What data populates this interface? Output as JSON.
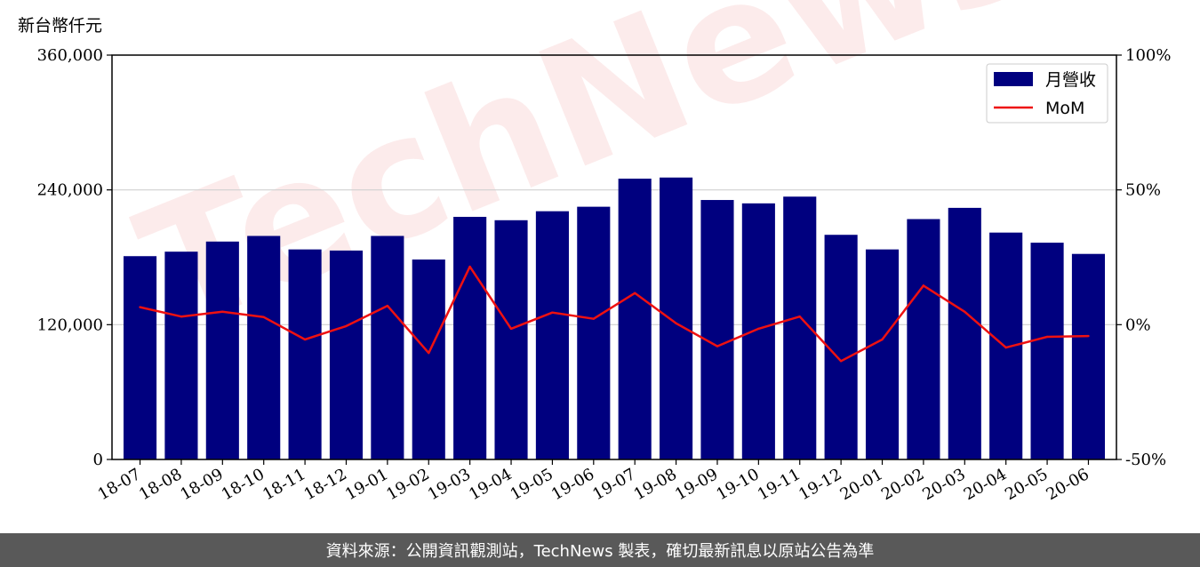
{
  "watermark": "TechNews",
  "footer_text": "資料來源：公開資訊觀測站，TechNews 製表，確切最新訊息以原站公告為準",
  "chart_data": {
    "type": "bar",
    "unit_label": "新台幣仟元",
    "categories": [
      "18-07",
      "18-08",
      "18-09",
      "18-10",
      "18-11",
      "18-12",
      "19-01",
      "19-02",
      "19-03",
      "19-04",
      "19-05",
      "19-06",
      "19-07",
      "19-08",
      "19-09",
      "19-10",
      "19-11",
      "19-12",
      "20-01",
      "20-02",
      "20-03",
      "20-04",
      "20-05",
      "20-06"
    ],
    "series": [
      {
        "name": "月營收",
        "type": "bar",
        "axis": "left",
        "color": "#00007f",
        "values": [
          181000,
          185000,
          194000,
          199000,
          187000,
          186000,
          199000,
          178000,
          216000,
          213000,
          221000,
          225000,
          250000,
          251000,
          231000,
          228000,
          234000,
          200000,
          187000,
          214000,
          224000,
          202000,
          193000,
          183000
        ]
      },
      {
        "name": "MoM",
        "type": "line",
        "axis": "right",
        "color": "#ee1111",
        "values": [
          6.5,
          3,
          4.8,
          2.8,
          -5.5,
          -0.5,
          7,
          -10.5,
          21.5,
          -1.5,
          4.5,
          2.2,
          11.7,
          0.5,
          -8,
          -1.5,
          3,
          -13.5,
          -5.5,
          14.5,
          4.8,
          -8.5,
          -4.5,
          -4.2
        ]
      }
    ],
    "ylim_left": [
      0,
      360000
    ],
    "yticks_left": [
      "0",
      "120,000",
      "240,000",
      "360,000"
    ],
    "ylim_right": [
      -50,
      100
    ],
    "yticks_right": [
      "-50%",
      "0%",
      "50%",
      "100%"
    ],
    "grid": true,
    "legend_position": "top-right"
  }
}
